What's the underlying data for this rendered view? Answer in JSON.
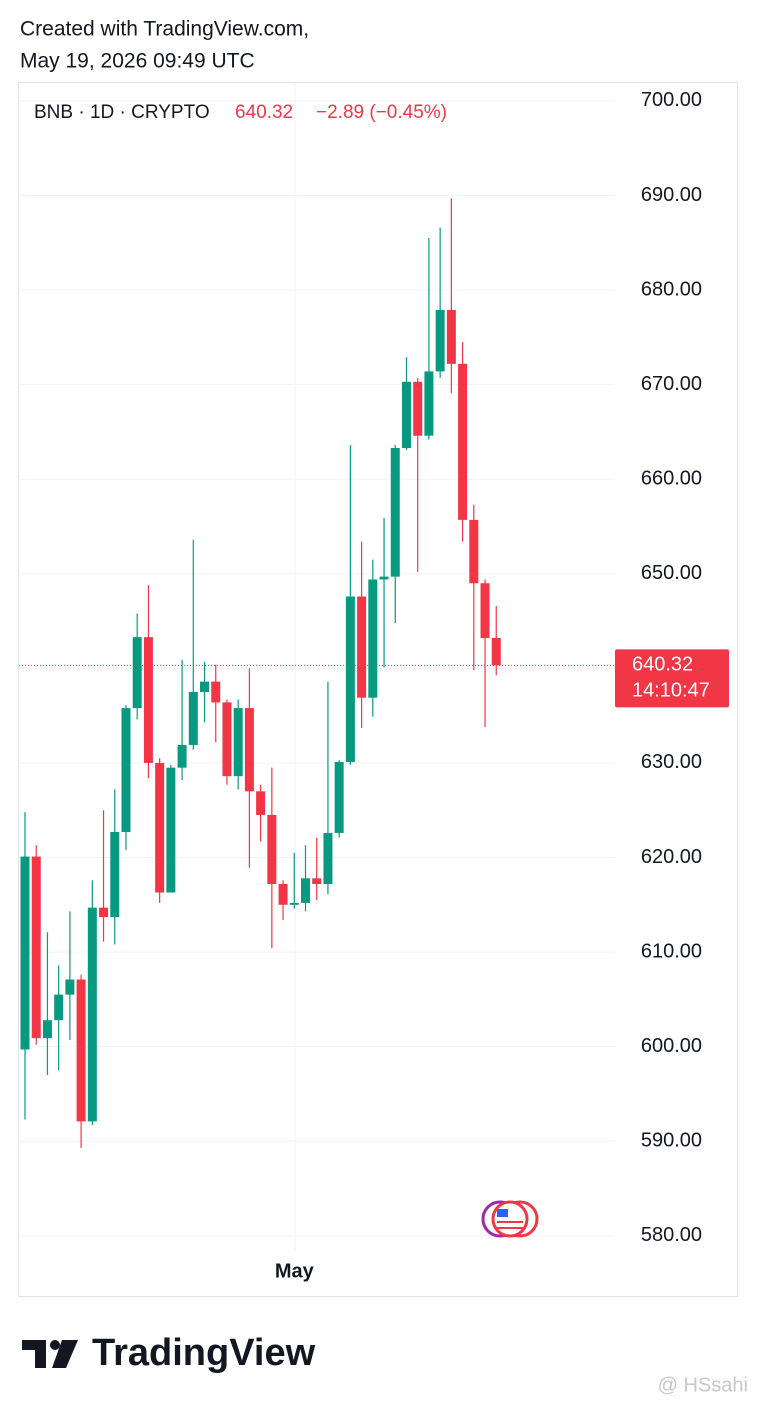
{
  "header": {
    "line1": "Created with TradingView.com,",
    "line2": "May 19, 2026 09:49 UTC"
  },
  "footer": {
    "logo": "TradingView",
    "watermark": "@ HSsahi"
  },
  "chart_data": {
    "type": "candlestick",
    "symbol": "BNB · 1D · CRYPTO",
    "last_price": 640.32,
    "change": "−2.89 (−0.45%)",
    "countdown": "14:10:47",
    "up_color": "#089981",
    "down_color": "#f23645",
    "grid": true,
    "categories": [
      null,
      null,
      null,
      null,
      null,
      null,
      null,
      null,
      null,
      null,
      null,
      null,
      null,
      null,
      null,
      null,
      null,
      null,
      null,
      null,
      null,
      null,
      null,
      null,
      "May",
      null,
      null,
      null,
      null,
      null,
      null,
      null,
      null,
      null,
      null,
      null,
      null,
      null,
      null,
      null,
      null,
      null,
      null
    ],
    "open": [
      599.7,
      620.1,
      600.9,
      602.8,
      605.5,
      607.1,
      592.1,
      614.7,
      613.7,
      622.7,
      635.8,
      643.3,
      630.0,
      616.3,
      629.5,
      631.9,
      637.5,
      638.6,
      636.4,
      628.6,
      635.8,
      627.0,
      624.5,
      617.2,
      615.0,
      615.2,
      617.8,
      617.2,
      622.6,
      630.1,
      647.6,
      636.9,
      649.4,
      649.7,
      663.3,
      670.3,
      664.6,
      671.4,
      677.9,
      672.2,
      655.7,
      649.0,
      643.21
    ],
    "high": [
      624.8,
      621.3,
      612.1,
      608.6,
      614.3,
      607.6,
      617.6,
      625.0,
      627.2,
      636.1,
      645.8,
      648.8,
      630.5,
      629.8,
      640.9,
      653.6,
      640.7,
      640.4,
      636.7,
      636.7,
      640.0,
      627.7,
      629.5,
      617.6,
      620.5,
      621.3,
      622.1,
      638.6,
      630.3,
      663.6,
      653.4,
      651.5,
      655.9,
      663.6,
      672.9,
      670.7,
      685.5,
      686.6,
      689.7,
      674.5,
      657.3,
      649.4,
      646.6
    ],
    "low": [
      592.3,
      600.2,
      597.0,
      597.5,
      600.7,
      589.3,
      591.7,
      611.1,
      610.8,
      620.8,
      634.6,
      628.4,
      615.2,
      616.3,
      628.2,
      631.4,
      634.3,
      632.2,
      627.7,
      627.2,
      618.9,
      621.7,
      610.4,
      613.4,
      614.6,
      614.3,
      615.5,
      616.1,
      622.1,
      629.8,
      633.7,
      634.9,
      640.1,
      644.8,
      663.1,
      650.2,
      664.2,
      670.7,
      669.1,
      653.4,
      639.8,
      633.8,
      639.3
    ],
    "close": [
      620.1,
      600.9,
      602.8,
      605.5,
      607.1,
      592.1,
      614.7,
      613.7,
      622.7,
      635.8,
      643.3,
      630.0,
      616.3,
      629.5,
      631.9,
      637.5,
      638.6,
      636.4,
      628.6,
      635.8,
      627.0,
      624.5,
      617.2,
      615.0,
      615.2,
      617.8,
      617.2,
      622.6,
      630.1,
      647.6,
      636.9,
      649.4,
      649.7,
      663.3,
      670.3,
      664.6,
      671.4,
      677.9,
      672.2,
      655.7,
      649.0,
      643.21,
      640.32
    ],
    "ylim": [
      578.5,
      702
    ],
    "yticks": [
      {
        "value": 580,
        "label": "580.00"
      },
      {
        "value": 590,
        "label": "590.00"
      },
      {
        "value": 600,
        "label": "600.00"
      },
      {
        "value": 610,
        "label": "610.00"
      },
      {
        "value": 620,
        "label": "620.00"
      },
      {
        "value": 630,
        "label": "630.00"
      },
      {
        "value": 640,
        "label": "640.00"
      },
      {
        "value": 650,
        "label": "650.00"
      },
      {
        "value": 660,
        "label": "660.00"
      },
      {
        "value": 670,
        "label": "670.00"
      },
      {
        "value": 680,
        "label": "680.00"
      },
      {
        "value": 690,
        "label": "690.00"
      },
      {
        "value": 700,
        "label": "700.00"
      }
    ]
  }
}
